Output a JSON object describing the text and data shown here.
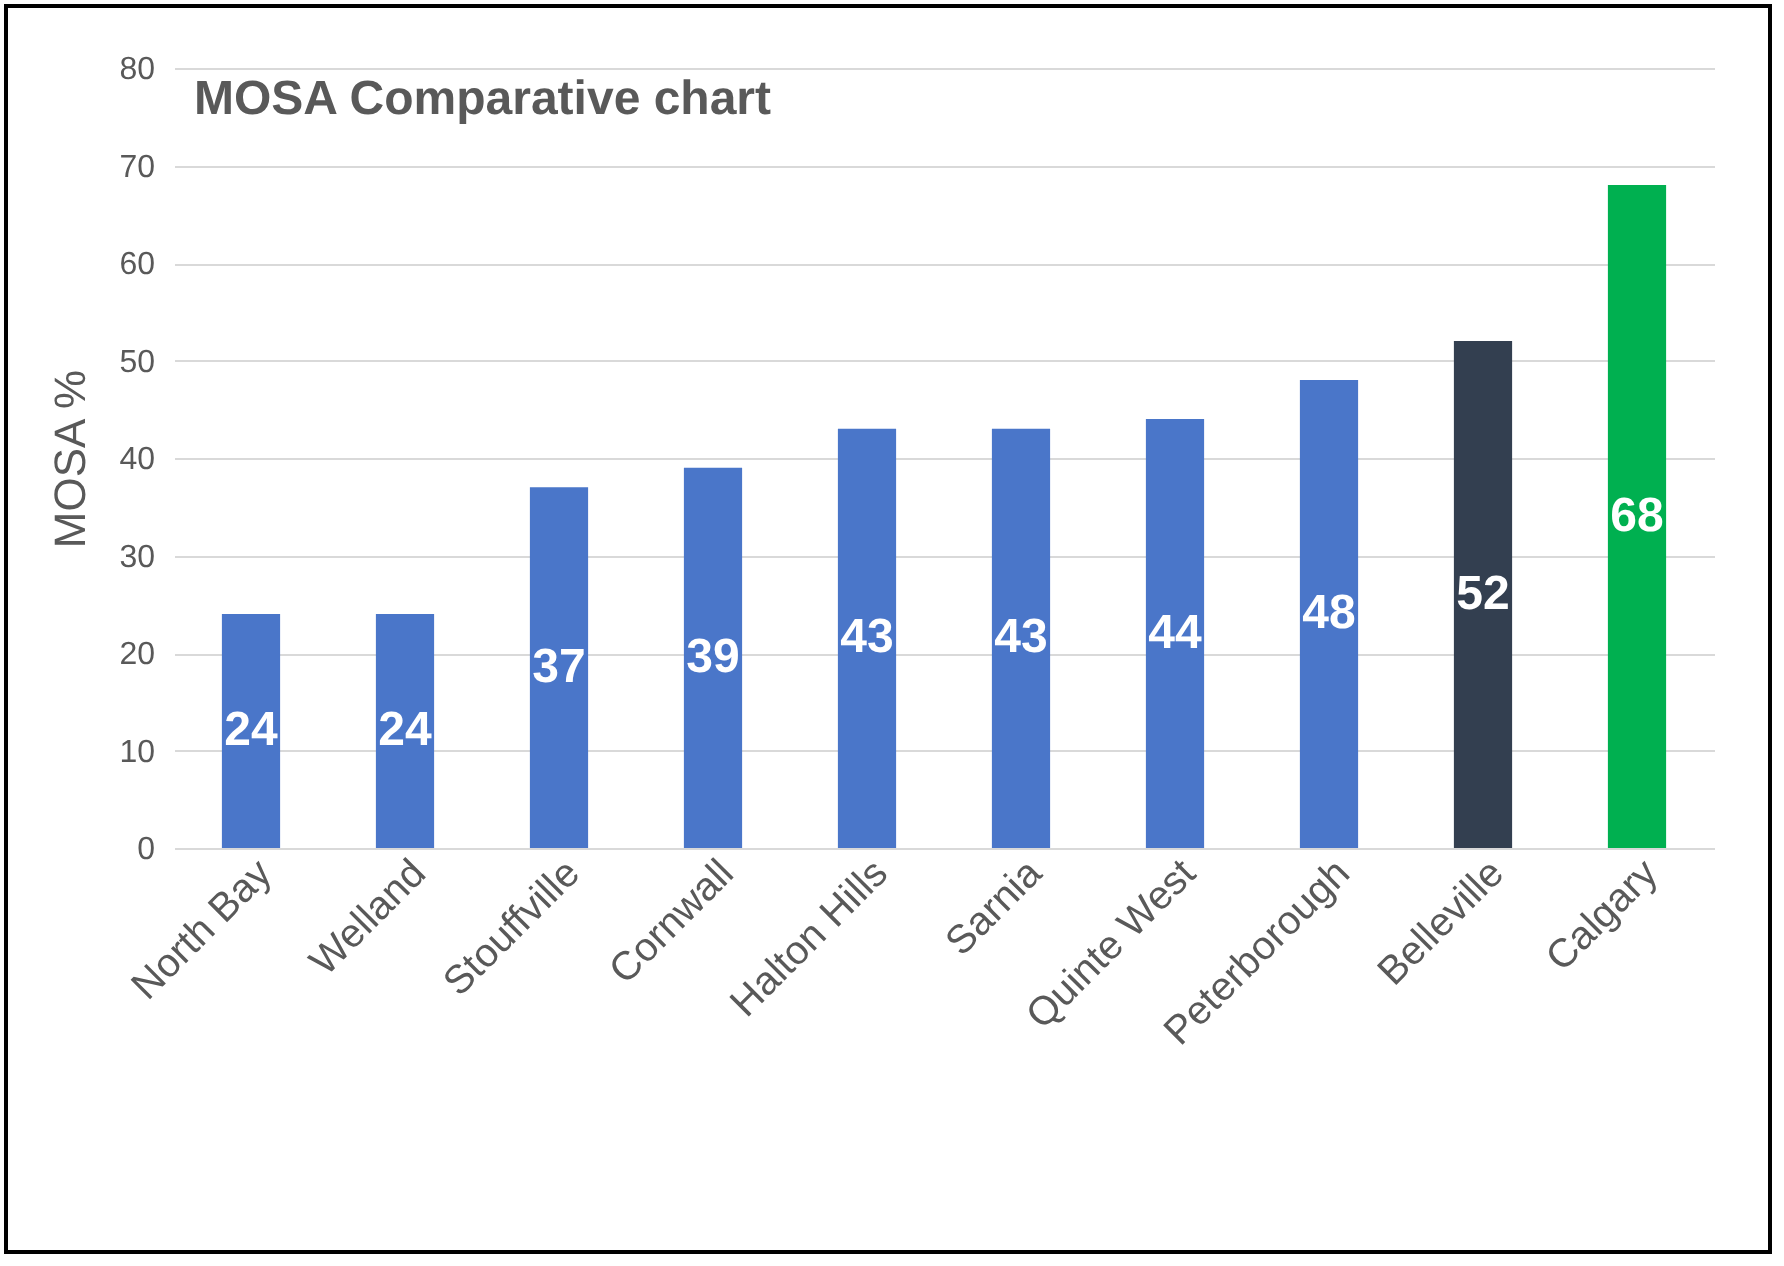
{
  "chart_data": {
    "type": "bar",
    "title": "MOSA Comparative chart",
    "ylabel": "MOSA %",
    "categories": [
      "North Bay",
      "Welland",
      "Stouffville",
      "Cornwall",
      "Halton Hills",
      "Sarnia",
      "Quinte West",
      "Peterborough",
      "Belleville",
      "Calgary"
    ],
    "values": [
      24,
      24,
      37,
      39,
      43,
      43,
      44,
      48,
      52,
      68
    ],
    "colors": [
      "#4a76c9",
      "#4a76c9",
      "#4a76c9",
      "#4a76c9",
      "#4a76c9",
      "#4a76c9",
      "#4a76c9",
      "#4a76c9",
      "#333f50",
      "#00b050"
    ],
    "ylim": [
      0,
      80
    ],
    "yticks": [
      0,
      10,
      20,
      30,
      40,
      50,
      60,
      70,
      80
    ],
    "grid": "y",
    "data_labels": true
  }
}
